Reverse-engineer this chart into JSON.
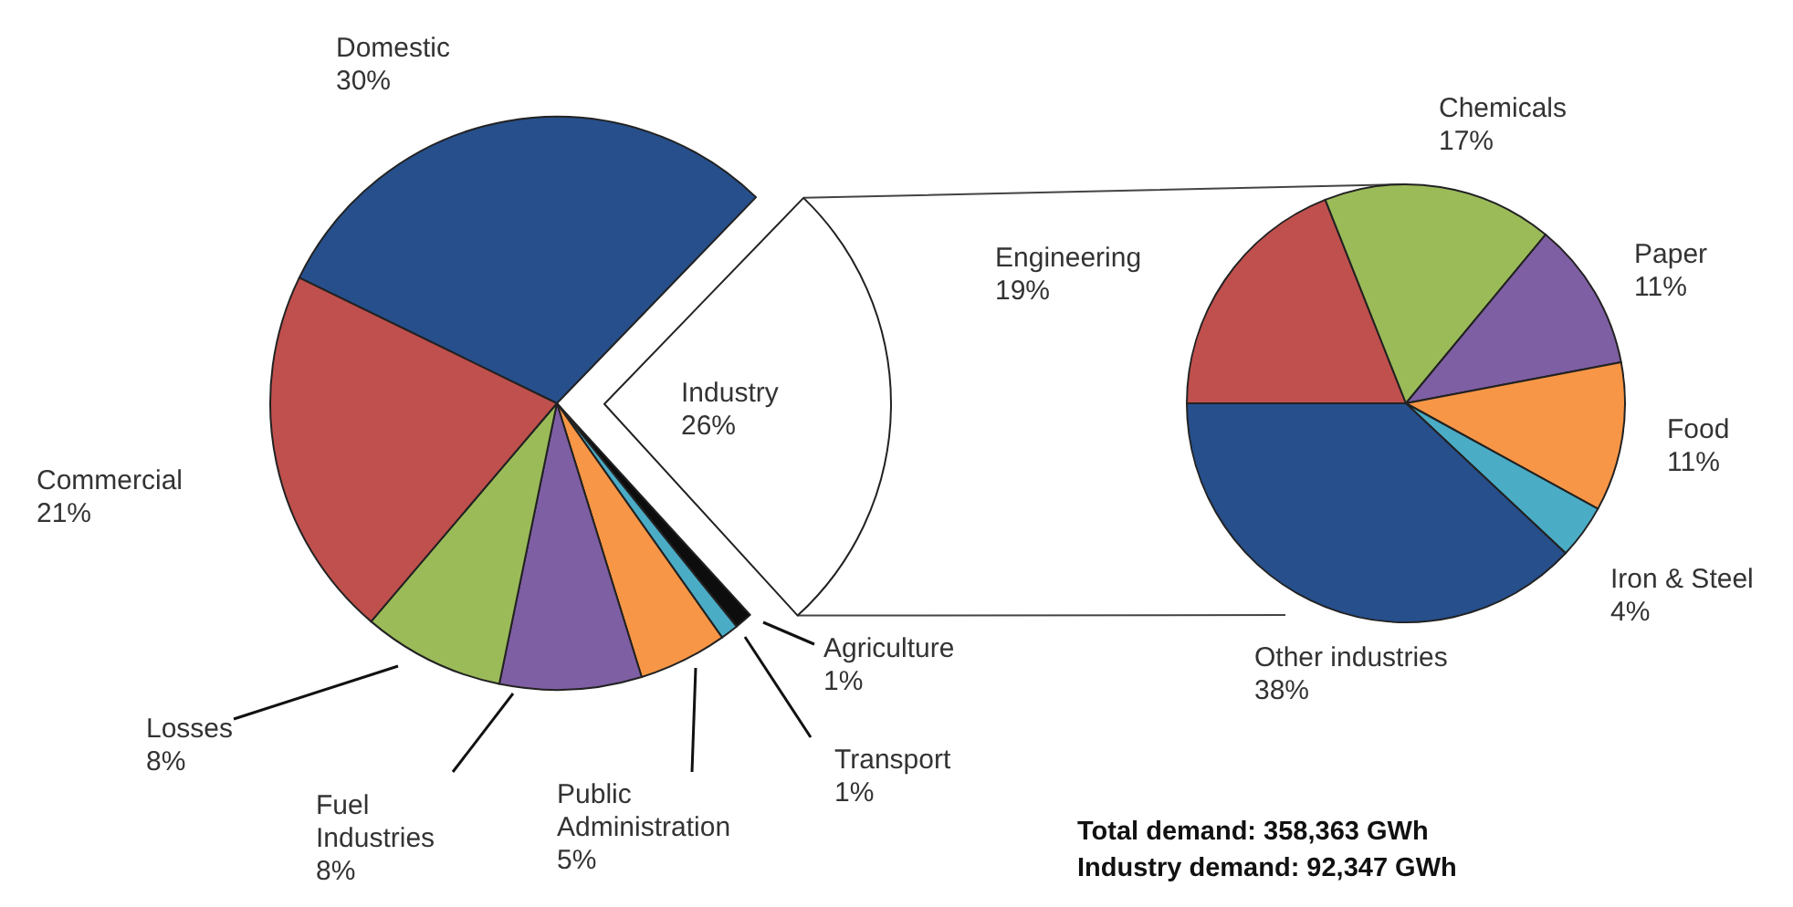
{
  "chart_data": [
    {
      "type": "pie",
      "categories": [
        "Domestic",
        "Industry",
        "Agriculture",
        "Transport",
        "Public Administration",
        "Fuel Industries",
        "Losses",
        "Commercial"
      ],
      "values": [
        30,
        26,
        1,
        1,
        5,
        8,
        8,
        21
      ],
      "value_labels": [
        "30%",
        "26%",
        "1%",
        "1%",
        "5%",
        "8%",
        "8%",
        "21%"
      ],
      "colors": [
        "#264f8c",
        "#ffffff",
        "#0d0d0d",
        "#4bacc6",
        "#f79646",
        "#7f5fa3",
        "#9bbb59",
        "#c0504d"
      ]
    },
    {
      "type": "pie",
      "categories": [
        "Engineering",
        "Chemicals",
        "Paper",
        "Food",
        "Iron & Steel",
        "Other industries"
      ],
      "values": [
        19,
        17,
        11,
        11,
        4,
        38
      ],
      "value_labels": [
        "19%",
        "17%",
        "11%",
        "11%",
        "4%",
        "38%"
      ],
      "colors": [
        "#c0504d",
        "#9bbb59",
        "#7f5fa3",
        "#f79646",
        "#4bacc6",
        "#264f8c"
      ],
      "annotations": [
        "Total demand: 358,363 GWh",
        "Industry demand: 92,347 GWh"
      ]
    }
  ]
}
